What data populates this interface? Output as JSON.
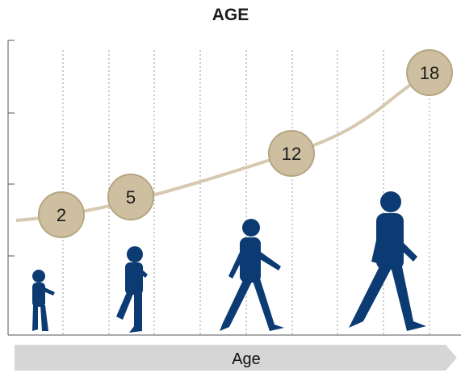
{
  "title": "AGE",
  "axis": {
    "label": "Age"
  },
  "colors": {
    "curve": "#d7c9b0",
    "marker_fill": "#cdbf9f",
    "marker_stroke": "#b5a683",
    "figure": "#0c3b74",
    "arrow": "#d6d6d6",
    "gridline": "#9a9a9a"
  },
  "markers": [
    {
      "label": "2"
    },
    {
      "label": "5"
    },
    {
      "label": "12"
    },
    {
      "label": "18"
    }
  ],
  "figures": [
    {
      "name": "toddler-silhouette"
    },
    {
      "name": "child-silhouette"
    },
    {
      "name": "preteen-silhouette"
    },
    {
      "name": "teen-silhouette"
    }
  ]
}
